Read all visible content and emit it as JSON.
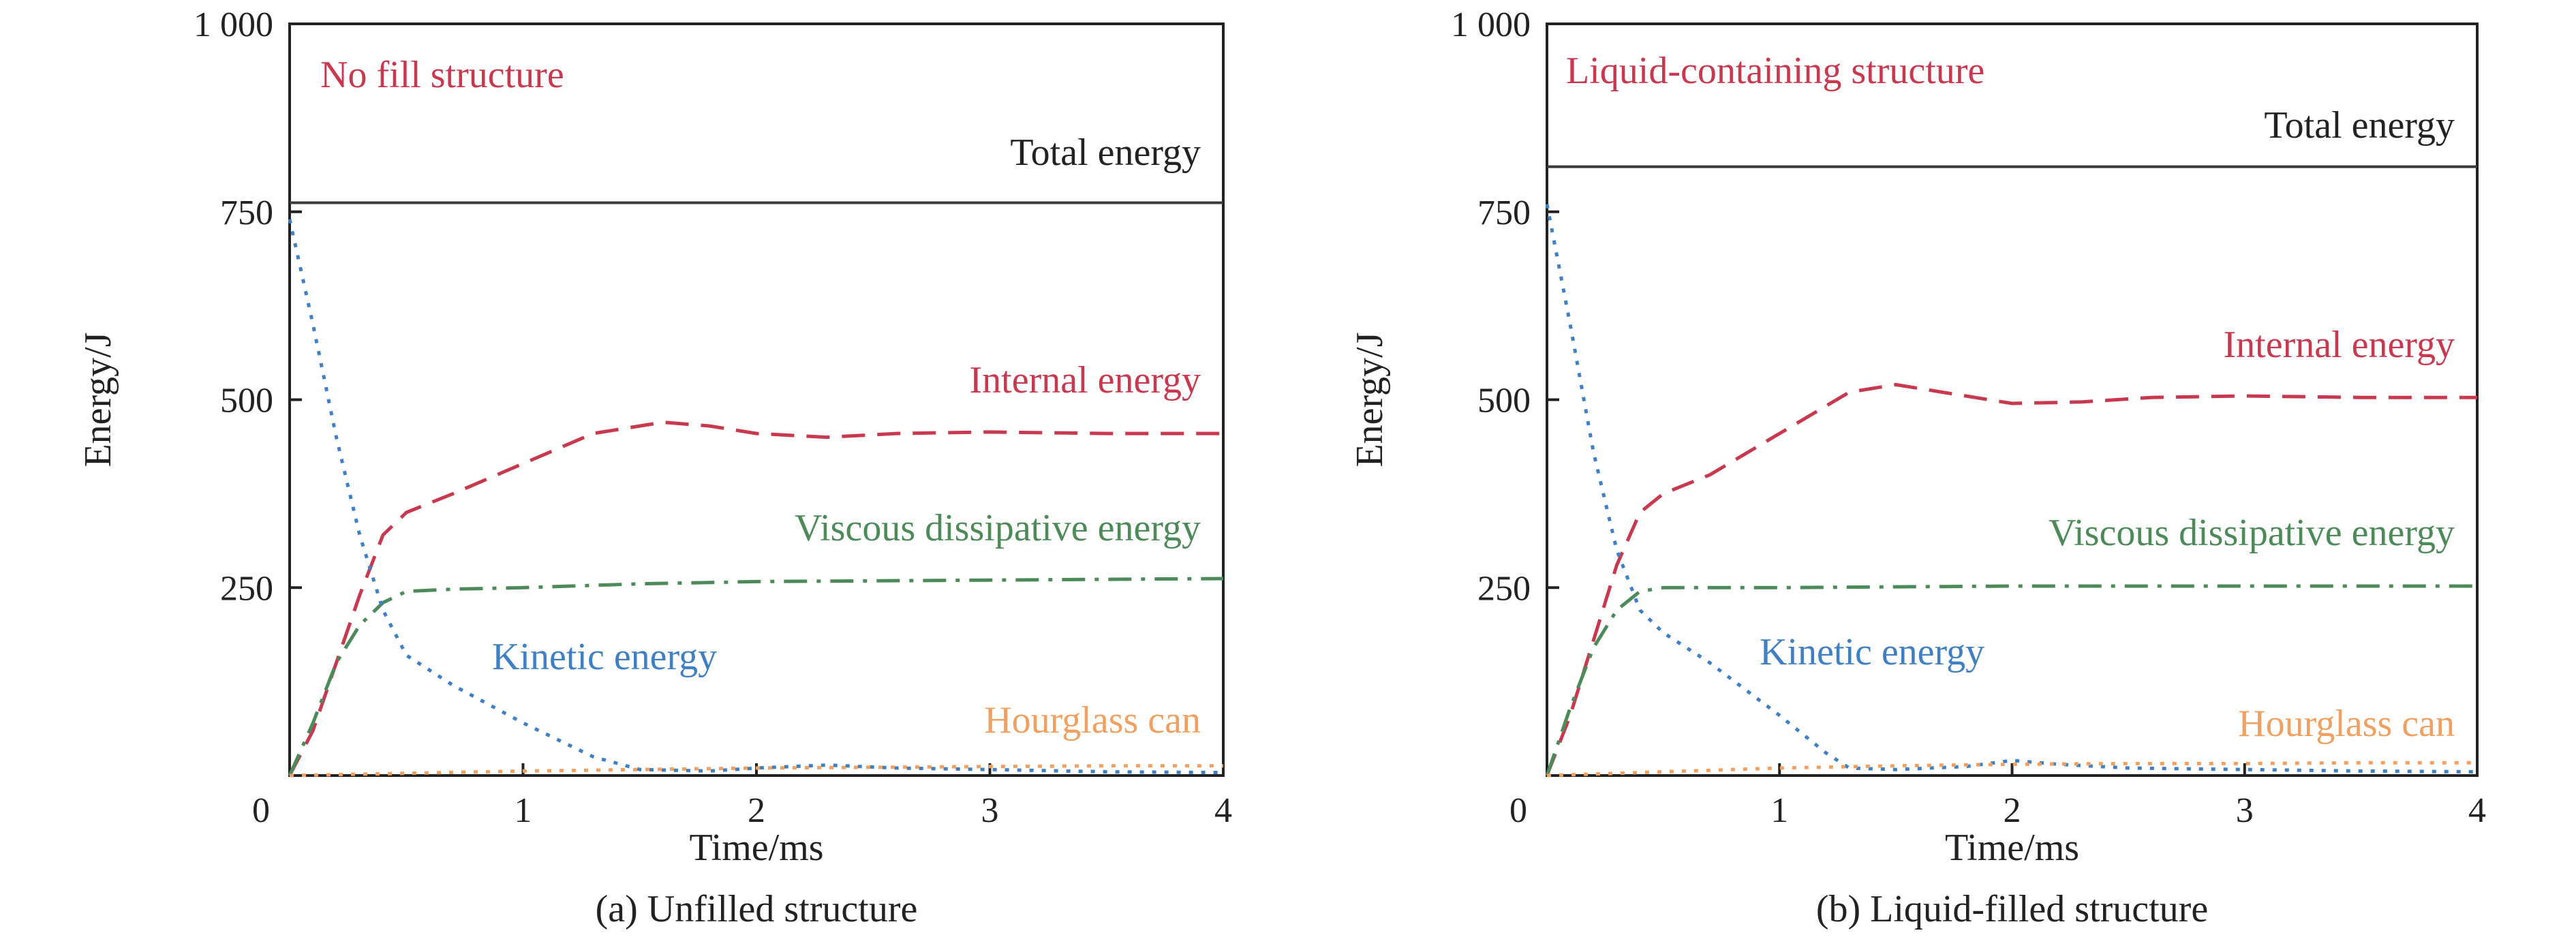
{
  "chart_data": [
    {
      "type": "line",
      "caption": "(a) Unfilled structure",
      "xlabel": "Time/ms",
      "ylabel": "Energy/J",
      "xlim": [
        0,
        4
      ],
      "ylim": [
        0,
        1000
      ],
      "x_tick_labels": [
        "0",
        "1",
        "2",
        "3",
        "4"
      ],
      "y_tick_labels": [
        "250",
        "500",
        "750",
        "1 000"
      ],
      "grid": false,
      "annotations": {
        "structure": "No fill structure",
        "total": "Total energy",
        "internal": "Internal energy",
        "viscous": "Viscous dissipative energy",
        "kinetic": "Kinetic energy",
        "hourglass": "Hourglass can"
      },
      "series": [
        {
          "key": "total",
          "color": "#3a3a3a",
          "style": "solid",
          "x": [
            0,
            0.5,
            1,
            2,
            3,
            4
          ],
          "y": [
            762,
            762,
            762,
            762,
            762,
            762
          ]
        },
        {
          "key": "internal",
          "color": "#c8384f",
          "style": "dashed",
          "x": [
            0,
            0.1,
            0.2,
            0.3,
            0.4,
            0.5,
            0.7,
            1.0,
            1.3,
            1.6,
            1.8,
            2.0,
            2.3,
            2.6,
            3.0,
            3.5,
            4.0
          ],
          "y": [
            0,
            60,
            150,
            240,
            320,
            350,
            375,
            415,
            455,
            470,
            465,
            455,
            450,
            455,
            457,
            455,
            455
          ]
        },
        {
          "key": "viscous",
          "color": "#4d8a5a",
          "style": "dashdot",
          "x": [
            0,
            0.1,
            0.2,
            0.3,
            0.4,
            0.5,
            0.7,
            1.0,
            1.5,
            2.0,
            2.5,
            3.0,
            3.5,
            4.0
          ],
          "y": [
            0,
            70,
            150,
            200,
            230,
            245,
            248,
            250,
            255,
            258,
            259,
            260,
            261,
            262
          ]
        },
        {
          "key": "kinetic",
          "color": "#3f7fc4",
          "style": "dotted",
          "x": [
            0,
            0.1,
            0.2,
            0.3,
            0.4,
            0.5,
            0.7,
            1.0,
            1.3,
            1.5,
            1.8,
            2.0,
            2.3,
            2.6,
            3.0,
            3.5,
            4.0
          ],
          "y": [
            740,
            600,
            450,
            320,
            220,
            160,
            120,
            70,
            25,
            8,
            6,
            10,
            14,
            10,
            8,
            5,
            4
          ]
        },
        {
          "key": "hourglass",
          "color": "#f0a060",
          "style": "dotted",
          "x": [
            0,
            0.5,
            1.0,
            1.5,
            2.0,
            2.5,
            3.0,
            3.5,
            4.0
          ],
          "y": [
            0,
            3,
            6,
            8,
            10,
            11,
            12,
            13,
            13
          ]
        }
      ]
    },
    {
      "type": "line",
      "caption": "(b) Liquid-filled structure",
      "xlabel": "Time/ms",
      "ylabel": "Energy/J",
      "xlim": [
        0,
        4
      ],
      "ylim": [
        0,
        1000
      ],
      "x_tick_labels": [
        "0",
        "1",
        "2",
        "3",
        "4"
      ],
      "y_tick_labels": [
        "250",
        "500",
        "750",
        "1 000"
      ],
      "grid": false,
      "annotations": {
        "structure": "Liquid-containing structure",
        "total": "Total energy",
        "internal": "Internal energy",
        "viscous": "Viscous dissipative energy",
        "kinetic": "Kinetic energy",
        "hourglass": "Hourglass can"
      },
      "series": [
        {
          "key": "total",
          "color": "#3a3a3a",
          "style": "solid",
          "x": [
            0,
            0.5,
            1,
            2,
            3,
            4
          ],
          "y": [
            810,
            810,
            810,
            810,
            810,
            810
          ]
        },
        {
          "key": "internal",
          "color": "#c8384f",
          "style": "dashed",
          "x": [
            0,
            0.1,
            0.2,
            0.3,
            0.4,
            0.5,
            0.7,
            1.0,
            1.3,
            1.5,
            1.7,
            2.0,
            2.3,
            2.6,
            3.0,
            3.5,
            4.0
          ],
          "y": [
            0,
            80,
            180,
            280,
            350,
            375,
            400,
            455,
            510,
            520,
            510,
            495,
            497,
            503,
            505,
            503,
            503
          ]
        },
        {
          "key": "viscous",
          "color": "#4d8a5a",
          "style": "dashdot",
          "x": [
            0,
            0.1,
            0.2,
            0.3,
            0.4,
            0.5,
            0.7,
            1.0,
            1.5,
            2.0,
            2.5,
            3.0,
            3.5,
            4.0
          ],
          "y": [
            0,
            90,
            170,
            220,
            245,
            250,
            250,
            250,
            251,
            252,
            252,
            252,
            252,
            252
          ]
        },
        {
          "key": "kinetic",
          "color": "#3f7fc4",
          "style": "dotted",
          "x": [
            0,
            0.1,
            0.2,
            0.3,
            0.4,
            0.5,
            0.7,
            1.0,
            1.2,
            1.3,
            1.5,
            1.8,
            2.0,
            2.2,
            2.5,
            3.0,
            3.5,
            4.0
          ],
          "y": [
            760,
            600,
            430,
            300,
            220,
            190,
            150,
            80,
            30,
            10,
            8,
            12,
            20,
            15,
            10,
            8,
            6,
            5
          ]
        },
        {
          "key": "hourglass",
          "color": "#f0a060",
          "style": "dotted",
          "x": [
            0,
            0.5,
            1.0,
            1.5,
            2.0,
            2.5,
            3.0,
            3.5,
            4.0
          ],
          "y": [
            0,
            5,
            10,
            13,
            15,
            16,
            16,
            17,
            17
          ]
        }
      ]
    }
  ]
}
